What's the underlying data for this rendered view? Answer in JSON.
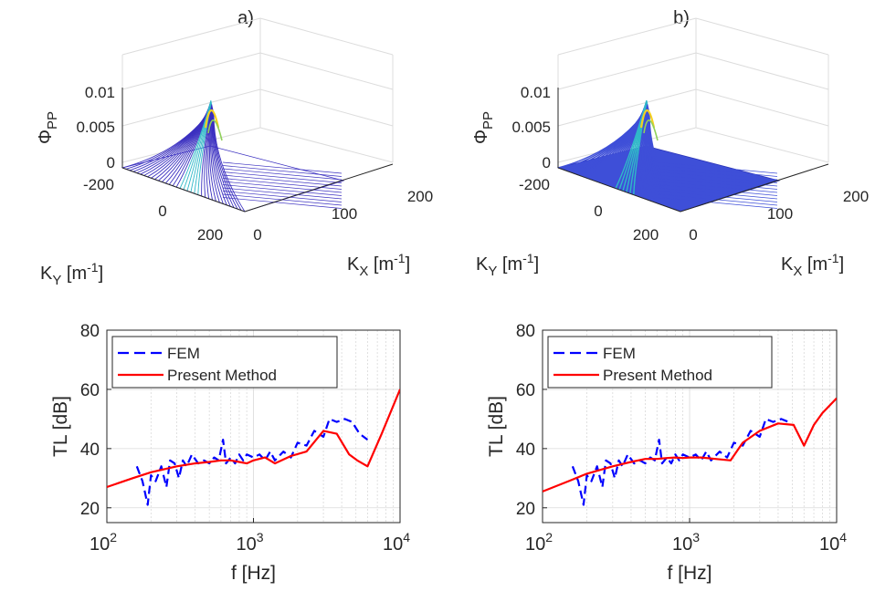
{
  "panels": [
    {
      "label": "a)",
      "surface": {
        "zlabel": "Φ",
        "zlabel_sub": "PP",
        "xlabel": "K",
        "xlabel_sub": "X",
        "xlabel_unit": "[m",
        "xlabel_exp": "-1",
        "xlabel_close": "]",
        "ylabel": "K",
        "ylabel_sub": "Y",
        "ylabel_unit": "[m",
        "ylabel_exp": "-1",
        "ylabel_close": "]",
        "zticks": [
          "0",
          "0.005",
          "0.01"
        ],
        "kyticks": [
          "-200",
          "0",
          "200"
        ],
        "kxticks": [
          "0",
          "100",
          "200"
        ]
      }
    },
    {
      "label": "b)",
      "surface": {
        "zlabel": "Φ",
        "zlabel_sub": "PP",
        "xlabel": "K",
        "xlabel_sub": "X",
        "xlabel_unit": "[m",
        "xlabel_exp": "-1",
        "xlabel_close": "]",
        "ylabel": "K",
        "ylabel_sub": "Y",
        "ylabel_unit": "[m",
        "ylabel_exp": "-1",
        "ylabel_close": "]",
        "zticks": [
          "0",
          "0.005",
          "0.01"
        ],
        "kyticks": [
          "-200",
          "0",
          "200"
        ],
        "kxticks": [
          "0",
          "100",
          "200"
        ]
      }
    }
  ],
  "colors": {
    "fem": "#0000ff",
    "present": "#ff0000",
    "axis": "#262626",
    "grid": "#d9d9d9",
    "mesh_a": "#3a2fc0",
    "mesh_b": "#3e4fd8",
    "peak": "#f5d020"
  },
  "chart_data": [
    {
      "type": "line",
      "xlabel": "f [Hz]",
      "ylabel": "TL [dB]",
      "xscale": "log",
      "xlim": [
        100,
        10000
      ],
      "ylim": [
        15,
        80
      ],
      "yticks": [
        20,
        40,
        60,
        80
      ],
      "xticks": [
        {
          "base": "10",
          "exp": "2"
        },
        {
          "base": "10",
          "exp": "3"
        },
        {
          "base": "10",
          "exp": "4"
        }
      ],
      "grid": true,
      "legend": "top-left",
      "series": [
        {
          "name": "FEM",
          "style": "dashed",
          "x": [
            160,
            175,
            190,
            200,
            215,
            235,
            255,
            270,
            290,
            310,
            330,
            350,
            380,
            420,
            460,
            500,
            540,
            580,
            620,
            650,
            700,
            750,
            800,
            850,
            900,
            1000,
            1100,
            1200,
            1300,
            1400,
            1600,
            1800,
            2000,
            2300,
            2600,
            3000,
            3300,
            3700,
            4200,
            4700,
            5300,
            6000
          ],
          "y": [
            34,
            29,
            21,
            31,
            29,
            34,
            27,
            36,
            35,
            30,
            36,
            34,
            38,
            35,
            36,
            35,
            37,
            36,
            43,
            35,
            37,
            35,
            38,
            36,
            38,
            37,
            38,
            36,
            39,
            36,
            39,
            37,
            42,
            41,
            46,
            44,
            50,
            49,
            50,
            49,
            45,
            43
          ]
        },
        {
          "name": "Present Method",
          "style": "solid",
          "x": [
            100,
            150,
            200,
            300,
            400,
            500,
            600,
            700,
            800,
            900,
            1000,
            1200,
            1400,
            1800,
            2300,
            3000,
            3700,
            4500,
            5100,
            6000,
            7500,
            10000
          ],
          "y": [
            27,
            30,
            32,
            34,
            35,
            35.5,
            36,
            36,
            35.5,
            35,
            36,
            37,
            35,
            37.5,
            39,
            46,
            45,
            38,
            36,
            34,
            45,
            60
          ]
        }
      ]
    },
    {
      "type": "line",
      "xlabel": "f [Hz]",
      "ylabel": "TL [dB]",
      "xscale": "log",
      "xlim": [
        100,
        10000
      ],
      "ylim": [
        15,
        80
      ],
      "yticks": [
        20,
        40,
        60,
        80
      ],
      "xticks": [
        {
          "base": "10",
          "exp": "2"
        },
        {
          "base": "10",
          "exp": "3"
        },
        {
          "base": "10",
          "exp": "4"
        }
      ],
      "grid": true,
      "legend": "top-left",
      "series": [
        {
          "name": "FEM",
          "style": "dashed",
          "x": [
            160,
            175,
            190,
            200,
            215,
            235,
            255,
            270,
            290,
            310,
            330,
            350,
            380,
            420,
            460,
            500,
            540,
            580,
            620,
            650,
            700,
            750,
            800,
            850,
            900,
            1000,
            1100,
            1200,
            1300,
            1400,
            1600,
            1800,
            2000,
            2300,
            2600,
            3000,
            3300,
            3700,
            4200,
            4700
          ],
          "y": [
            34,
            29,
            21,
            31,
            29,
            34,
            27,
            36,
            35,
            30,
            36,
            34,
            38,
            35,
            36,
            35,
            37,
            36,
            43,
            35,
            37,
            35,
            38,
            36,
            38,
            37,
            38,
            36,
            39,
            36,
            39,
            37,
            42,
            41,
            46,
            44,
            50,
            49,
            50,
            49
          ]
        },
        {
          "name": "Present Method",
          "style": "solid",
          "x": [
            100,
            150,
            200,
            300,
            400,
            500,
            600,
            700,
            800,
            900,
            1000,
            1200,
            1500,
            1900,
            2300,
            3000,
            4000,
            5100,
            6000,
            7000,
            8000,
            10000
          ],
          "y": [
            25.5,
            29,
            31.5,
            34,
            35.5,
            36.5,
            36.5,
            36.8,
            37,
            36.8,
            37,
            37,
            36.5,
            36,
            42,
            46,
            48.5,
            48,
            41,
            48,
            52,
            57
          ]
        }
      ]
    }
  ]
}
